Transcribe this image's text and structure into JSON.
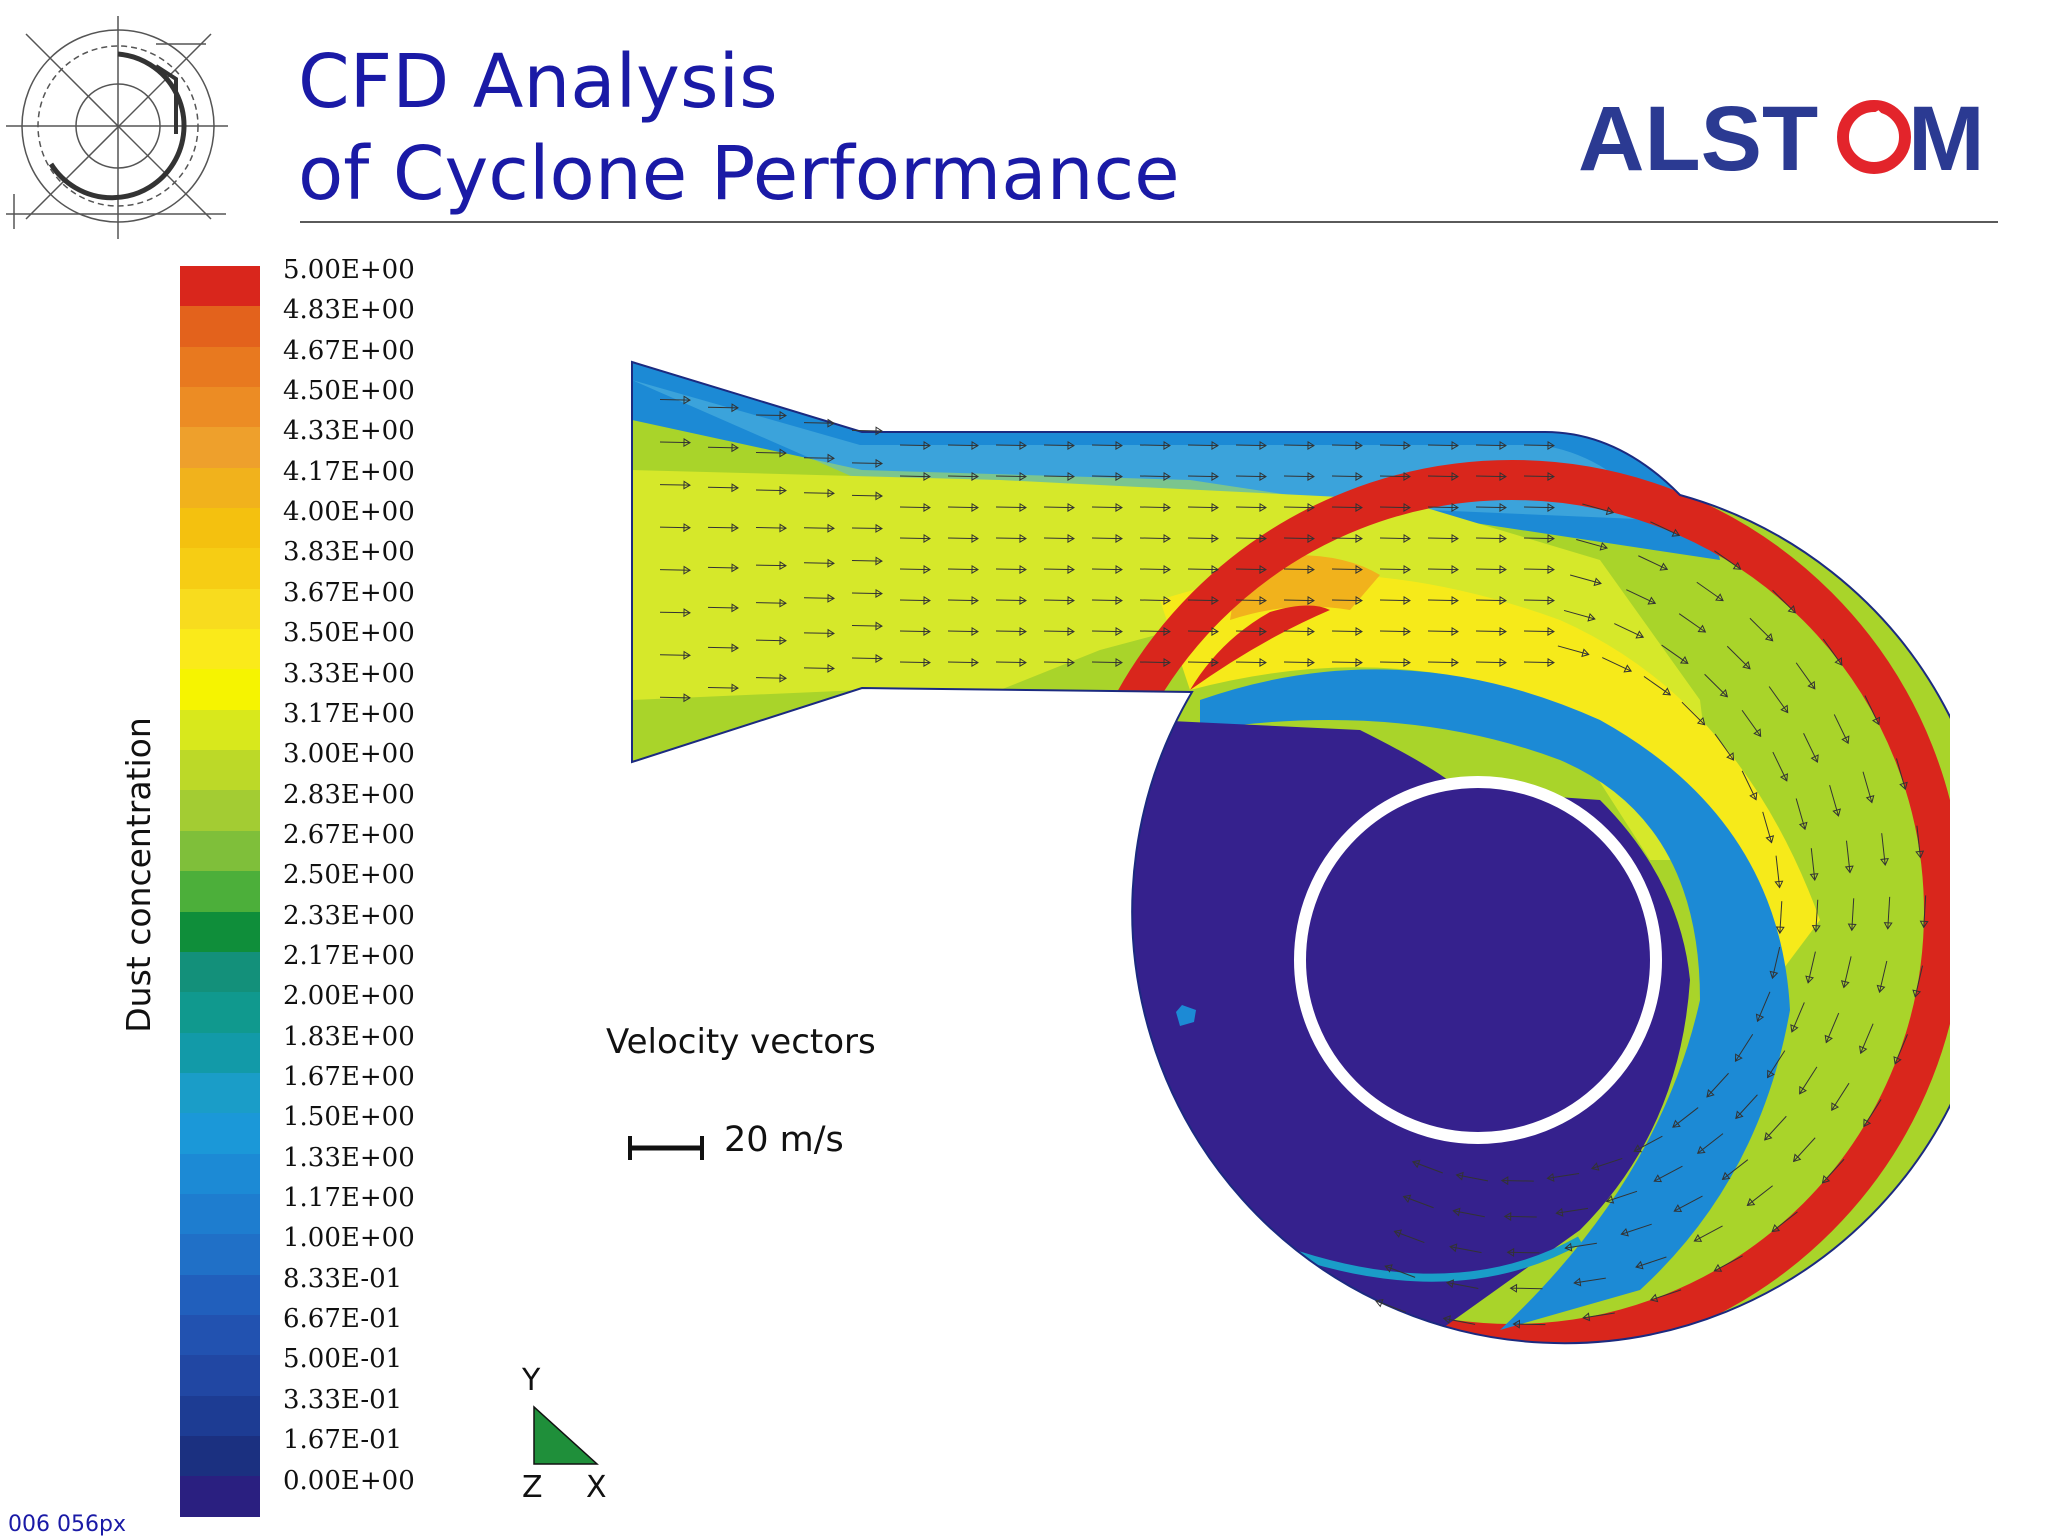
{
  "title": {
    "line1": "CFD Analysis",
    "line2": "of Cyclone Performance"
  },
  "logo": {
    "text": "ALSTOM",
    "color": "#2b3a92",
    "accent": "#e3242b"
  },
  "colorbar": {
    "label": "Dust concentration",
    "ticks": [
      "5.00E+00",
      "4.83E+00",
      "4.67E+00",
      "4.50E+00",
      "4.33E+00",
      "4.17E+00",
      "4.00E+00",
      "3.83E+00",
      "3.67E+00",
      "3.50E+00",
      "3.33E+00",
      "3.17E+00",
      "3.00E+00",
      "2.83E+00",
      "2.67E+00",
      "2.50E+00",
      "2.33E+00",
      "2.17E+00",
      "2.00E+00",
      "1.83E+00",
      "1.67E+00",
      "1.50E+00",
      "1.33E+00",
      "1.17E+00",
      "1.00E+00",
      "8.33E-01",
      "6.67E-01",
      "5.00E-01",
      "3.33E-01",
      "1.67E-01",
      "0.00E+00"
    ],
    "colors": [
      "#d9261c",
      "#e3621c",
      "#e8791f",
      "#ec8c24",
      "#eea02c",
      "#f1b21c",
      "#f4c10f",
      "#f6cd14",
      "#f8dc1e",
      "#faea1a",
      "#f6f400",
      "#d8e81c",
      "#bcd928",
      "#a3cc33",
      "#7fbf3a",
      "#4caf3a",
      "#0f8e3a",
      "#13907a",
      "#10998e",
      "#129aa8",
      "#1a9dc8",
      "#1b98d8",
      "#1c8ad5",
      "#1e7dcf",
      "#2070c7",
      "#215fbc",
      "#2252b0",
      "#2147a3",
      "#1d3c93",
      "#1b3080",
      "#2a1f80"
    ]
  },
  "velocity": {
    "label": "Velocity vectors",
    "reference": "20 m/s"
  },
  "triad": {
    "y": "Y",
    "z": "Z",
    "x": "X"
  },
  "footer": {
    "page_note": "006 056px"
  },
  "plot_colors": {
    "core": "#35218d",
    "wall": "#d9261c",
    "stream_blue": "#1c8ad5",
    "stream_yellow": "#f6ea1a",
    "inlet_green": "#a9d42a"
  }
}
